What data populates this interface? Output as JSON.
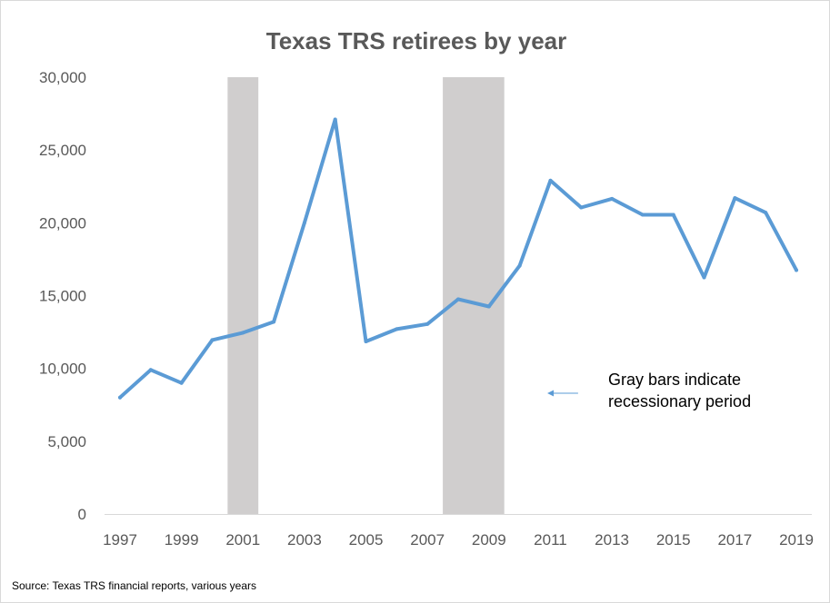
{
  "chart_data": {
    "type": "line",
    "title": "Texas TRS retirees by year",
    "x": [
      1997,
      1998,
      1999,
      2000,
      2001,
      2002,
      2003,
      2004,
      2005,
      2006,
      2007,
      2008,
      2009,
      2010,
      2011,
      2012,
      2013,
      2014,
      2015,
      2016,
      2017,
      2018,
      2019
    ],
    "series": [
      {
        "values": [
          8000,
          9900,
          9000,
          11950,
          12450,
          13200,
          20000,
          27100,
          11850,
          12700,
          13050,
          14750,
          14250,
          17050,
          22900,
          21050,
          21650,
          20550,
          20550,
          16250,
          21700,
          20700,
          16750
        ],
        "color": "#5b9bd5"
      }
    ],
    "xlim": [
      1997,
      2019
    ],
    "ylim": [
      0,
      30000
    ],
    "x_ticks": [
      "1997",
      "1999",
      "2001",
      "2003",
      "2005",
      "2007",
      "2009",
      "2011",
      "2013",
      "2015",
      "2017",
      "2019"
    ],
    "x_tick_values": [
      1997,
      1999,
      2001,
      2003,
      2005,
      2007,
      2009,
      2011,
      2013,
      2015,
      2017,
      2019
    ],
    "y_ticks": [
      "0",
      "5,000",
      "10,000",
      "15,000",
      "20,000",
      "25,000",
      "30,000"
    ],
    "y_tick_values": [
      0,
      5000,
      10000,
      15000,
      20000,
      25000,
      30000
    ],
    "recessions": [
      [
        2000.5,
        2001.5
      ],
      [
        2007.5,
        2009.5
      ]
    ],
    "recession_color": "#d0cece",
    "grid": false,
    "annotation": {
      "lines": [
        "Gray bars indicate",
        "recessionary  period"
      ],
      "arrow_from": [
        2011.9,
        10000
      ],
      "arrow_to": [
        2010.9,
        8300
      ]
    },
    "source": "Source: Texas TRS financial reports, various years"
  }
}
